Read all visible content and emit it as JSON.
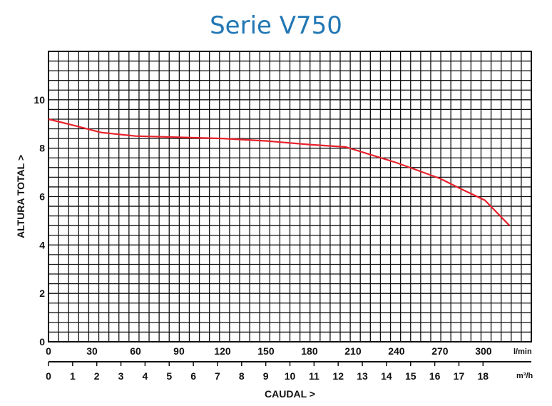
{
  "chart_data": {
    "type": "line",
    "title": "Serie V750",
    "ylabel": "ALTURA TOTAL >",
    "xlabel": "CAUDAL >",
    "ylim": [
      0,
      12
    ],
    "y_ticks": [
      "0",
      "2",
      "4",
      "6",
      "8",
      "10"
    ],
    "x_primary": {
      "unit": "l/min",
      "range": [
        0,
        333
      ],
      "ticks": [
        "0",
        "30",
        "60",
        "90",
        "120",
        "150",
        "180",
        "210",
        "240",
        "270",
        "300"
      ]
    },
    "x_secondary": {
      "unit": "m³/h",
      "range": [
        0,
        20
      ],
      "ticks": [
        "0",
        "1",
        "2",
        "3",
        "4",
        "5",
        "6",
        "7",
        "8",
        "9",
        "10",
        "11",
        "12",
        "13",
        "14",
        "15",
        "16",
        "17",
        "18"
      ]
    },
    "grid": true,
    "series": [
      {
        "color": "#e8212b",
        "points": [
          {
            "x": 0,
            "y": 9.2
          },
          {
            "x": 20,
            "y": 8.9
          },
          {
            "x": 36,
            "y": 8.65
          },
          {
            "x": 60,
            "y": 8.5
          },
          {
            "x": 90,
            "y": 8.45
          },
          {
            "x": 120,
            "y": 8.4
          },
          {
            "x": 150,
            "y": 8.3
          },
          {
            "x": 180,
            "y": 8.15
          },
          {
            "x": 205,
            "y": 8.05
          },
          {
            "x": 240,
            "y": 7.4
          },
          {
            "x": 270,
            "y": 6.75
          },
          {
            "x": 285,
            "y": 6.3
          },
          {
            "x": 301,
            "y": 5.85
          },
          {
            "x": 318,
            "y": 4.8
          }
        ]
      }
    ]
  }
}
